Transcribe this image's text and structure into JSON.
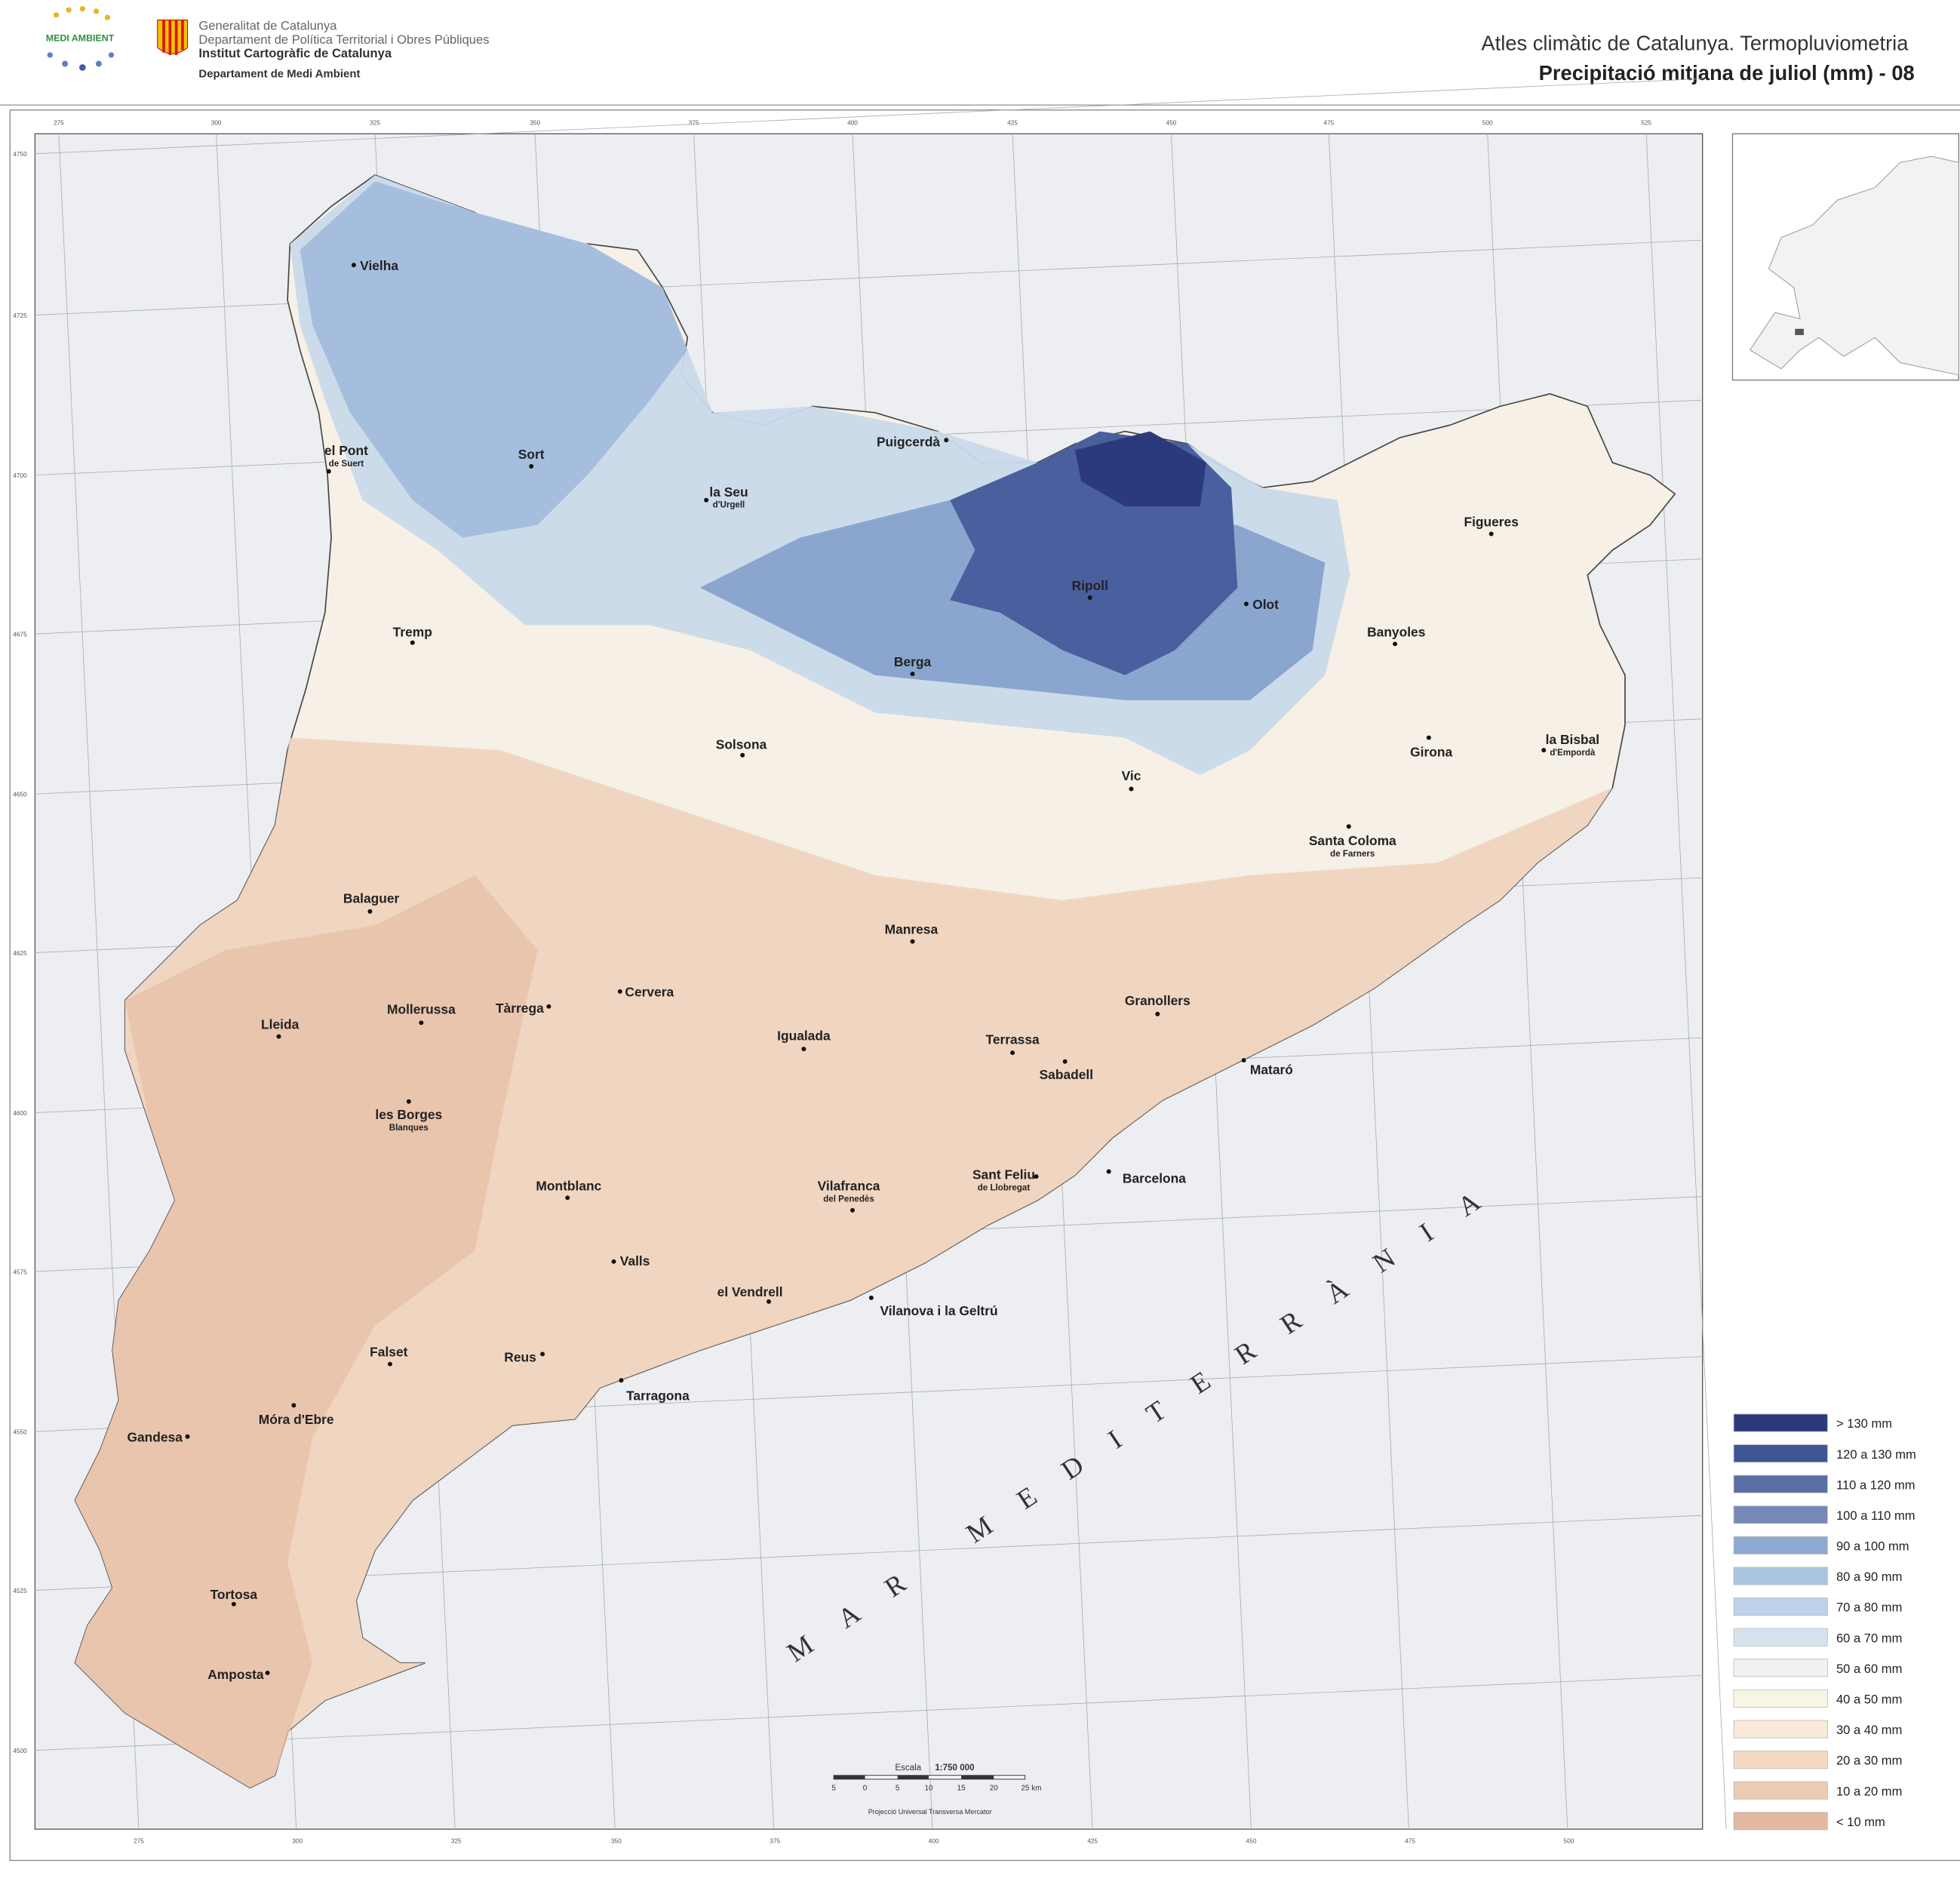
{
  "header": {
    "logo": "MEDI AMBIENT",
    "org_lines": [
      "Generalitat de Catalunya",
      "Departament de Política Territorial i Obres Públiques",
      "Institut Cartogràfic de Catalunya",
      "Departament de Medi Ambient"
    ],
    "title": "Atles climàtic de Catalunya. Termopluviometria",
    "subtitle": "Precipitació mitjana de juliol (mm) - 08"
  },
  "map": {
    "cities": [
      {
        "name": "Vielha"
      },
      {
        "name": "el Pont",
        "sub": "de Suert"
      },
      {
        "name": "Sort"
      },
      {
        "name": "Puigcerdà"
      },
      {
        "name": "la Seu",
        "sub": "d'Urgell"
      },
      {
        "name": "Figueres"
      },
      {
        "name": "Ripoll"
      },
      {
        "name": "Olot"
      },
      {
        "name": "Tremp"
      },
      {
        "name": "Banyoles"
      },
      {
        "name": "Berga"
      },
      {
        "name": "Solsona"
      },
      {
        "name": "Girona"
      },
      {
        "name": "la Bisbal",
        "sub": "d'Empordà"
      },
      {
        "name": "Vic"
      },
      {
        "name": "Santa Coloma",
        "sub": "de Farners"
      },
      {
        "name": "Balaguer"
      },
      {
        "name": "Manresa"
      },
      {
        "name": "Mollerussa"
      },
      {
        "name": "Tàrrega"
      },
      {
        "name": "Cervera"
      },
      {
        "name": "Granollers"
      },
      {
        "name": "Lleida"
      },
      {
        "name": "Igualada"
      },
      {
        "name": "Terrassa"
      },
      {
        "name": "Sabadell"
      },
      {
        "name": "Mataró"
      },
      {
        "name": "les Borges",
        "sub": "Blanques"
      },
      {
        "name": "Montblanc"
      },
      {
        "name": "Vilafranca",
        "sub": "del Penedès"
      },
      {
        "name": "Sant Feliu",
        "sub": "de Llobregat"
      },
      {
        "name": "Barcelona"
      },
      {
        "name": "Valls"
      },
      {
        "name": "el Vendrell"
      },
      {
        "name": "Vilanova i la Geltrú"
      },
      {
        "name": "Reus"
      },
      {
        "name": "Falset"
      },
      {
        "name": "Tarragona"
      },
      {
        "name": "Móra d'Ebre"
      },
      {
        "name": "Gandesa"
      },
      {
        "name": "Tortosa"
      },
      {
        "name": "Amposta"
      }
    ],
    "sea_label": "MAR MEDITERRÀNIA",
    "grid": {
      "top": [
        "275",
        "300",
        "325",
        "350",
        "375",
        "400",
        "425",
        "450",
        "475",
        "500",
        "525"
      ],
      "bottom": [
        "275",
        "300",
        "325",
        "350",
        "375",
        "400",
        "425",
        "450",
        "475",
        "500"
      ],
      "left": [
        "4750",
        "4725",
        "4700",
        "4675",
        "4650",
        "4625",
        "4600",
        "4575",
        "4550",
        "4525",
        "4500"
      ]
    },
    "legend": [
      {
        "label": "> 130 mm",
        "color": "#2b3a7a"
      },
      {
        "label": "120  a 130 mm",
        "color": "#3f5594"
      },
      {
        "label": "110  a 120 mm",
        "color": "#5a6ea6"
      },
      {
        "label": "100  a 110 mm",
        "color": "#7688b6"
      },
      {
        "label": "90  a 100 mm",
        "color": "#8ea9d2"
      },
      {
        "label": "80  a 90 mm",
        "color": "#a9c3e1"
      },
      {
        "label": "70  a 80 mm",
        "color": "#bdd2e8"
      },
      {
        "label": "60  a 70 mm",
        "color": "#d6e3ef"
      },
      {
        "label": "50  a 60 mm",
        "color": "#f0f2f2"
      },
      {
        "label": "40  a 50 mm",
        "color": "#f8f5e4"
      },
      {
        "label": "30  a 40 mm",
        "color": "#f8e9d8"
      },
      {
        "label": "20  a 30 mm",
        "color": "#f3d9c2"
      },
      {
        "label": "10  a 20 mm",
        "color": "#eccbb3"
      },
      {
        "label": "< 10 mm",
        "color": "#e2b8a0"
      }
    ],
    "scale": {
      "label": "Escala",
      "ratio": "1:750 000",
      "ticks": [
        "5",
        "0",
        "5",
        "10",
        "15",
        "20",
        "25 km"
      ],
      "projection": "Projecció Universal Transversa Mercator"
    }
  }
}
